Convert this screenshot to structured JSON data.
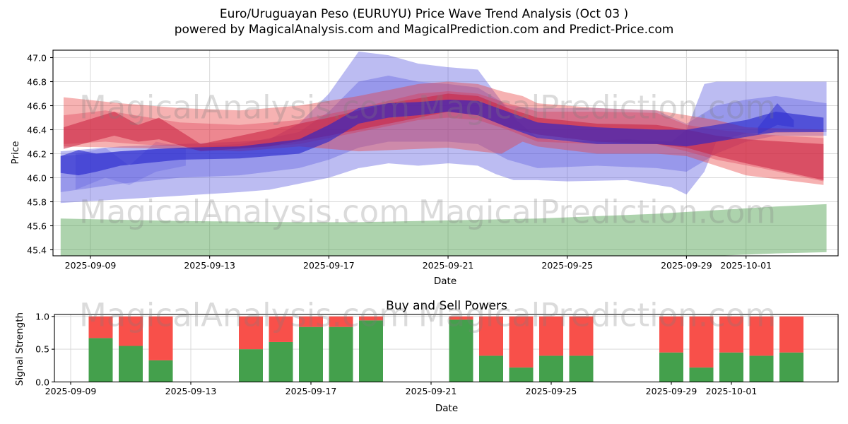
{
  "figure_title": {
    "line1": "Euro/Uruguayan Peso (EURUYU) Price Wave Trend Analysis (Oct 03 )",
    "line2": "powered by MagicalAnalysis.com and MagicalPrediction.com and Predict-Price.com"
  },
  "watermarks": {
    "text_left": "MagicalAnalysis.com",
    "text_right": "MagicalPrediction.com"
  },
  "chart_data": [
    {
      "type": "area",
      "name": "price-wave-chart",
      "title": "",
      "xlabel": "Date",
      "ylabel": "Price",
      "x_unit": "days since 2025-09-08",
      "ylim": [
        45.35,
        47.06
      ],
      "grid": true,
      "yticks": [
        {
          "label": "45.4",
          "value": 45.4
        },
        {
          "label": "45.6",
          "value": 45.6
        },
        {
          "label": "45.8",
          "value": 45.8
        },
        {
          "label": "46.0",
          "value": 46.0
        },
        {
          "label": "46.2",
          "value": 46.2
        },
        {
          "label": "46.4",
          "value": 46.4
        },
        {
          "label": "46.6",
          "value": 46.6
        },
        {
          "label": "46.8",
          "value": 46.8
        },
        {
          "label": "47.0",
          "value": 47.0
        }
      ],
      "xticks": [
        {
          "label": "2025-09-09",
          "day": 1
        },
        {
          "label": "2025-09-13",
          "day": 5
        },
        {
          "label": "2025-09-17",
          "day": 9
        },
        {
          "label": "2025-09-21",
          "day": 13
        },
        {
          "label": "2025-09-25",
          "day": 17
        },
        {
          "label": "2025-09-29",
          "day": 21
        },
        {
          "label": "2025-10-01",
          "day": 23
        }
      ],
      "bands": [
        {
          "name": "support-green-band",
          "color": "#3c963c",
          "opacity": 0.42,
          "x": [
            0,
            4,
            8,
            10,
            12,
            14,
            16,
            18,
            20,
            22,
            24,
            25.7
          ],
          "upper": [
            45.66,
            45.64,
            45.63,
            45.63,
            45.64,
            45.65,
            45.66,
            45.68,
            45.7,
            45.73,
            45.76,
            45.78
          ],
          "lower": [
            45.3,
            45.3,
            45.3,
            45.31,
            45.32,
            45.32,
            45.33,
            45.33,
            45.34,
            45.35,
            45.37,
            45.38
          ]
        },
        {
          "name": "blue-wave-wide",
          "color": "#4646db",
          "opacity": 0.36,
          "x": [
            0,
            2,
            4,
            6,
            7,
            8,
            9,
            10,
            11,
            12,
            13,
            14,
            14.6,
            15.2,
            16,
            17,
            19,
            20.5,
            21,
            21.6,
            22,
            23,
            25.7
          ],
          "upper": [
            46.22,
            46.26,
            46.28,
            46.3,
            46.32,
            46.45,
            46.7,
            47.05,
            47.02,
            46.95,
            46.92,
            46.9,
            46.7,
            46.5,
            46.33,
            46.3,
            46.32,
            46.3,
            46.4,
            46.78,
            46.8,
            46.8,
            46.8
          ],
          "lower": [
            45.79,
            45.82,
            45.85,
            45.88,
            45.9,
            45.95,
            46.0,
            46.08,
            46.12,
            46.1,
            46.12,
            46.1,
            46.03,
            45.98,
            45.98,
            45.97,
            45.98,
            45.92,
            45.86,
            46.05,
            46.3,
            46.37,
            46.38
          ]
        },
        {
          "name": "blue-wave-medium",
          "color": "#4646db",
          "opacity": 0.3,
          "x": [
            0,
            2,
            4,
            6,
            8,
            9,
            10,
            11,
            12,
            13,
            14,
            15,
            16,
            18,
            20,
            21,
            22,
            23,
            24,
            25.7
          ],
          "upper": [
            46.18,
            46.22,
            46.25,
            46.28,
            46.38,
            46.55,
            46.8,
            46.85,
            46.8,
            46.78,
            46.75,
            46.6,
            46.58,
            46.58,
            46.56,
            46.45,
            46.6,
            46.65,
            46.68,
            46.62
          ],
          "lower": [
            45.88,
            45.95,
            46.0,
            46.02,
            46.08,
            46.15,
            46.25,
            46.3,
            46.3,
            46.3,
            46.28,
            46.15,
            46.08,
            46.1,
            46.08,
            46.05,
            46.2,
            46.3,
            46.35,
            46.35
          ]
        },
        {
          "name": "blue-wave-oscillation",
          "color": "#4646db",
          "opacity": 0.22,
          "x": [
            0.5,
            1.5,
            2.3,
            3.2,
            4.2
          ],
          "upper": [
            46.2,
            46.25,
            46.1,
            46.3,
            46.25
          ],
          "lower": [
            45.9,
            46.0,
            45.94,
            46.05,
            46.1
          ]
        },
        {
          "name": "red-wave-wide",
          "color": "#e93e3e",
          "opacity": 0.4,
          "x": [
            0.1,
            2,
            4,
            6,
            8,
            10,
            12,
            13,
            14,
            14.8,
            15.5,
            16,
            18,
            20,
            21,
            22,
            23,
            25.6
          ],
          "upper": [
            46.67,
            46.62,
            46.58,
            46.56,
            46.6,
            46.68,
            46.78,
            46.8,
            46.78,
            46.72,
            46.68,
            46.62,
            46.58,
            46.56,
            46.52,
            46.48,
            46.42,
            46.4
          ],
          "lower": [
            46.26,
            46.25,
            46.24,
            46.22,
            46.26,
            46.22,
            46.24,
            46.25,
            46.22,
            46.2,
            46.3,
            46.26,
            46.2,
            46.2,
            46.18,
            46.1,
            46.02,
            45.94
          ]
        },
        {
          "name": "red-wave-medium",
          "color": "#db304d",
          "opacity": 0.33,
          "x": [
            0.1,
            1.5,
            2.5,
            4,
            6,
            8,
            10,
            12,
            13,
            14,
            15,
            16,
            18,
            20,
            21,
            22,
            23.5,
            25.6
          ],
          "upper": [
            46.52,
            46.56,
            46.52,
            46.46,
            46.44,
            46.48,
            46.58,
            46.7,
            46.72,
            46.7,
            46.62,
            46.55,
            46.55,
            46.54,
            46.44,
            46.4,
            46.36,
            46.33
          ],
          "lower": [
            46.28,
            46.3,
            46.28,
            46.26,
            46.25,
            46.28,
            46.38,
            46.48,
            46.5,
            46.48,
            46.4,
            46.3,
            46.28,
            46.28,
            46.22,
            46.15,
            46.08,
            45.97
          ]
        },
        {
          "name": "red-wave-core",
          "color": "#c82040",
          "opacity": 0.55,
          "x": [
            0.1,
            1.8,
            2.6,
            3.3,
            4.7,
            7,
            9,
            11,
            13,
            14,
            15,
            16,
            18,
            20,
            21,
            22,
            23,
            25.6
          ],
          "upper": [
            46.42,
            46.55,
            46.44,
            46.5,
            46.28,
            46.4,
            46.5,
            46.62,
            46.7,
            46.68,
            46.58,
            46.5,
            46.45,
            46.44,
            46.4,
            46.35,
            46.32,
            46.28
          ],
          "lower": [
            46.24,
            46.35,
            46.3,
            46.32,
            46.22,
            46.26,
            46.35,
            46.45,
            46.55,
            46.52,
            46.42,
            46.36,
            46.3,
            46.28,
            46.25,
            46.18,
            46.12,
            45.98
          ]
        },
        {
          "name": "blue-wave-core",
          "color": "#2222cc",
          "opacity": 0.6,
          "x": [
            0,
            0.6,
            1.2,
            2,
            4,
            6,
            8,
            9,
            10,
            11,
            12,
            13,
            14,
            15,
            16,
            18,
            20,
            21,
            22,
            23,
            24,
            25.6
          ],
          "upper": [
            46.18,
            46.23,
            46.2,
            46.22,
            46.25,
            46.26,
            46.32,
            46.44,
            46.58,
            46.62,
            46.63,
            46.65,
            46.64,
            46.55,
            46.46,
            46.42,
            46.4,
            46.4,
            46.44,
            46.48,
            46.55,
            46.5
          ],
          "lower": [
            46.04,
            46.02,
            46.05,
            46.1,
            46.15,
            46.16,
            46.2,
            46.3,
            46.45,
            46.5,
            46.52,
            46.55,
            46.52,
            46.42,
            46.33,
            46.28,
            46.28,
            46.26,
            46.3,
            46.34,
            46.38,
            46.38
          ]
        },
        {
          "name": "blue-arrow-marker",
          "color": "#3232d2",
          "opacity": 0.55,
          "x": [
            23.4,
            24.05,
            24.6
          ],
          "upper": [
            46.42,
            46.62,
            46.48
          ],
          "lower": [
            46.36,
            46.44,
            46.42
          ]
        }
      ]
    },
    {
      "type": "bar",
      "name": "buy-sell-chart",
      "title": "Buy and Sell Powers",
      "xlabel": "Date",
      "ylabel": "Signal Strength",
      "x_unit": "days since 2025-09-08",
      "ylim": [
        0,
        1.04
      ],
      "grid": true,
      "stacked": true,
      "bar_width_days": 0.8,
      "colors": {
        "buy": "#44a04c",
        "sell": "#f8504a"
      },
      "yticks": [
        {
          "label": "0.0",
          "value": 0.0
        },
        {
          "label": "0.5",
          "value": 0.5
        },
        {
          "label": "1.0",
          "value": 1.0
        }
      ],
      "xticks": [
        {
          "label": "2025-09-09",
          "day": 1
        },
        {
          "label": "2025-09-13",
          "day": 5
        },
        {
          "label": "2025-09-17",
          "day": 9
        },
        {
          "label": "2025-09-21",
          "day": 13
        },
        {
          "label": "2025-09-25",
          "day": 17
        },
        {
          "label": "2025-09-29",
          "day": 21
        },
        {
          "label": "2025-10-01",
          "day": 23
        }
      ],
      "bars": [
        {
          "date": "2025-09-10",
          "day": 2,
          "buy": 0.67,
          "sell": 0.33
        },
        {
          "date": "2025-09-11",
          "day": 3,
          "buy": 0.55,
          "sell": 0.45
        },
        {
          "date": "2025-09-12",
          "day": 4,
          "buy": 0.33,
          "sell": 0.67
        },
        {
          "date": "2025-09-15",
          "day": 7,
          "buy": 0.5,
          "sell": 0.5
        },
        {
          "date": "2025-09-16",
          "day": 8,
          "buy": 0.61,
          "sell": 0.39
        },
        {
          "date": "2025-09-17",
          "day": 9,
          "buy": 0.84,
          "sell": 0.16
        },
        {
          "date": "2025-09-18",
          "day": 10,
          "buy": 0.84,
          "sell": 0.16
        },
        {
          "date": "2025-09-19",
          "day": 11,
          "buy": 0.94,
          "sell": 0.06
        },
        {
          "date": "2025-09-22",
          "day": 14,
          "buy": 0.95,
          "sell": 0.05
        },
        {
          "date": "2025-09-23",
          "day": 15,
          "buy": 0.4,
          "sell": 0.6
        },
        {
          "date": "2025-09-24",
          "day": 16,
          "buy": 0.22,
          "sell": 0.78
        },
        {
          "date": "2025-09-25",
          "day": 17,
          "buy": 0.4,
          "sell": 0.6
        },
        {
          "date": "2025-09-26",
          "day": 18,
          "buy": 0.4,
          "sell": 0.6
        },
        {
          "date": "2025-09-29",
          "day": 21,
          "buy": 0.45,
          "sell": 0.55
        },
        {
          "date": "2025-09-30",
          "day": 22,
          "buy": 0.22,
          "sell": 0.78
        },
        {
          "date": "2025-10-01",
          "day": 23,
          "buy": 0.45,
          "sell": 0.55
        },
        {
          "date": "2025-10-02",
          "day": 24,
          "buy": 0.4,
          "sell": 0.6
        },
        {
          "date": "2025-10-03",
          "day": 25,
          "buy": 0.45,
          "sell": 0.55
        }
      ]
    }
  ]
}
